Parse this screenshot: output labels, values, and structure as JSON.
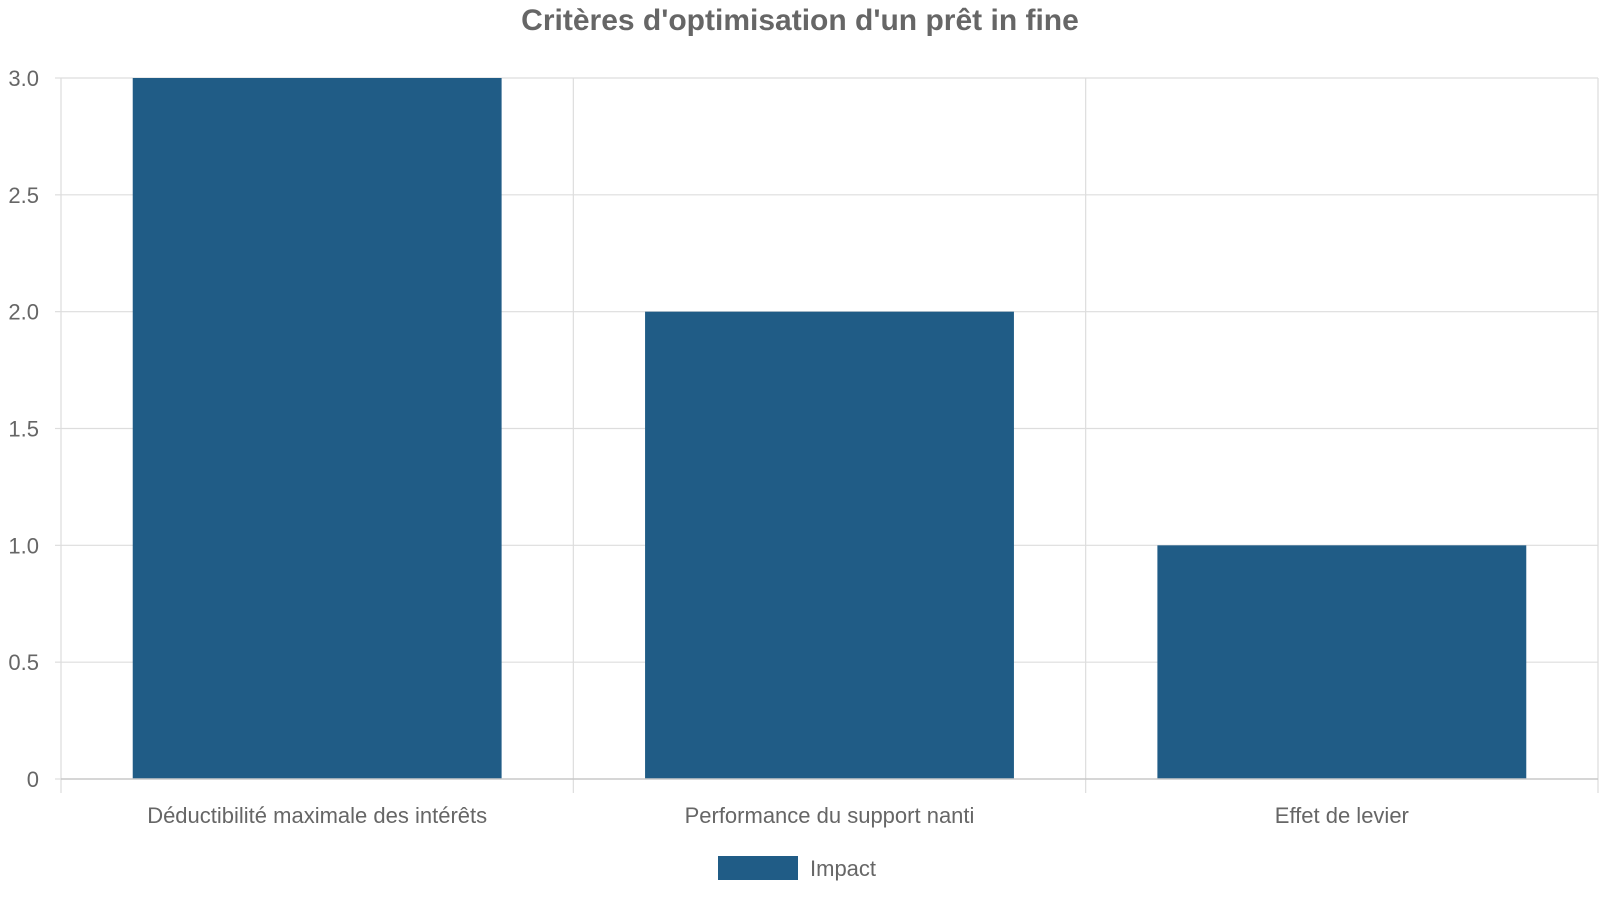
{
  "chart_data": {
    "type": "bar",
    "title": "Critères d'optimisation d'un prêt in fine",
    "xlabel": "",
    "ylabel": "",
    "categories": [
      "Déductibilité maximale des intérêts",
      "Performance du support nanti",
      "Effet de levier"
    ],
    "series": [
      {
        "name": "Impact",
        "color": "#205c86",
        "values": [
          3,
          2,
          1
        ]
      }
    ],
    "ylim": [
      0,
      3
    ],
    "yticks": [
      "0",
      "0.5",
      "1.0",
      "1.5",
      "2.0",
      "2.5",
      "3.0"
    ],
    "grid": true,
    "legend_position": "bottom-center"
  }
}
